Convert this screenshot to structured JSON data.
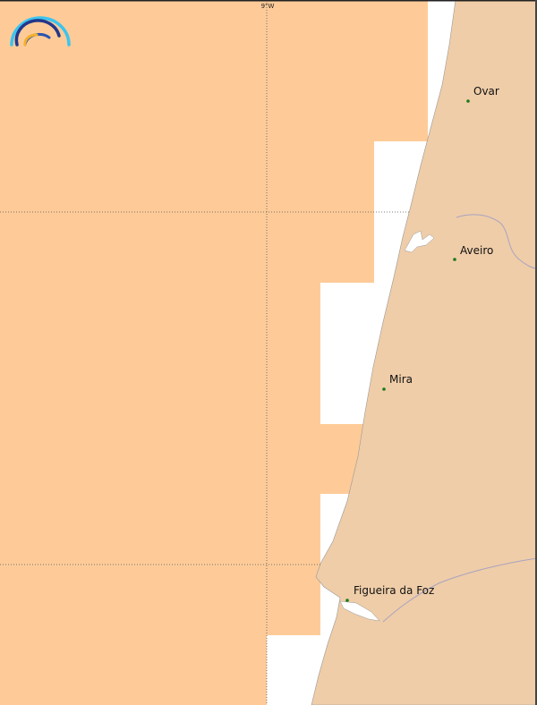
{
  "map": {
    "grid_labels": {
      "lon_9w": "9°W"
    },
    "cities": [
      {
        "name": "Ovar"
      },
      {
        "name": "Aveiro"
      },
      {
        "name": "Mira"
      },
      {
        "name": "Figueira da Foz"
      }
    ],
    "colors": {
      "land": "#efcda8",
      "coverage": "#fecb98",
      "sea": "#ffffff",
      "city_dot": "#1a7a1a",
      "river": "#a9a3c0"
    },
    "logo_icon": "rainbow-arcs-logo"
  }
}
